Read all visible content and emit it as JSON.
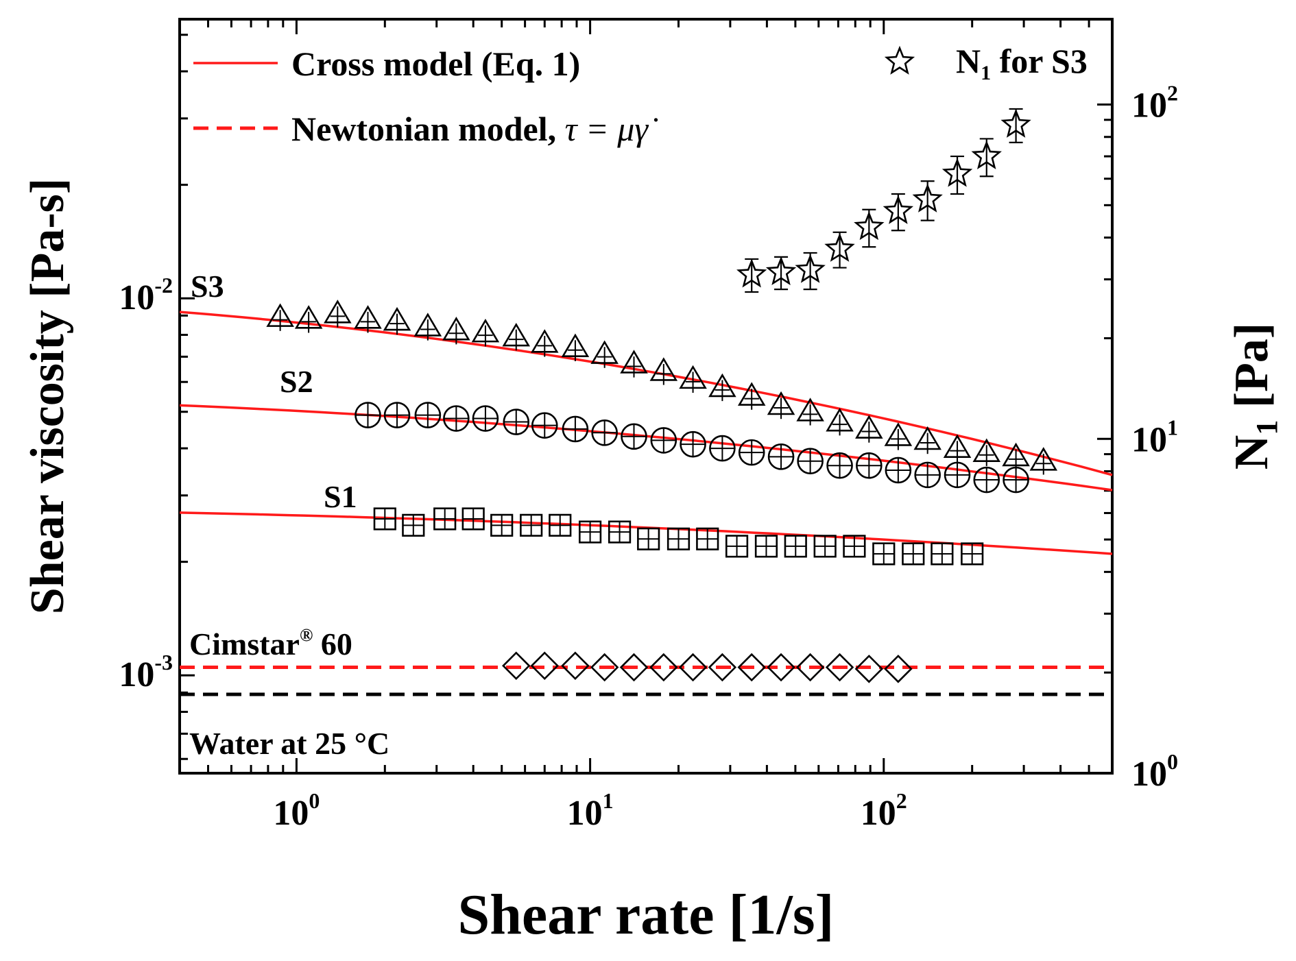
{
  "chart_data": {
    "type": "scatter",
    "xlabel": "Shear rate [1/s]",
    "ylabel": "Shear viscosity [Pa-s]",
    "y2label_main": "N",
    "y2label_sub": "1",
    "y2label_unit": " [Pa]",
    "xscale": "log",
    "yscale": "log",
    "y2scale": "log",
    "xlim": [
      0.4,
      600
    ],
    "ylim": [
      0.00055,
      0.055
    ],
    "y2lim": [
      1.0,
      180
    ],
    "x_ticks": [
      {
        "base": "10",
        "exp": "0",
        "value": 1
      },
      {
        "base": "10",
        "exp": "1",
        "value": 10
      },
      {
        "base": "10",
        "exp": "2",
        "value": 100
      }
    ],
    "y_ticks": [
      {
        "base": "10",
        "exp": "-3",
        "value": 0.001
      },
      {
        "base": "10",
        "exp": "-2",
        "value": 0.01
      }
    ],
    "y2_ticks": [
      {
        "base": "10",
        "exp": "0",
        "value": 1
      },
      {
        "base": "10",
        "exp": "1",
        "value": 10
      },
      {
        "base": "10",
        "exp": "2",
        "value": 100
      }
    ],
    "grid": false,
    "legend": {
      "placement": "top",
      "cross_label": "Cross model (Eq. 1)",
      "newton_label_text": "Newtonian model, ",
      "newton_label_eq": "τ = μγ̇",
      "n1_label_main": "N",
      "n1_label_sub": "1",
      "n1_label_rest": " for S3"
    },
    "annotations": {
      "s3": "S3",
      "s2": "S2",
      "s1": "S1",
      "cimstar_main": "Cimstar",
      "cimstar_sup": "®",
      "cimstar_rest": " 60",
      "water": "Water at 25 °C"
    },
    "colors": {
      "model": "#ff1a1a",
      "water": "#000000",
      "markers": "#000000"
    },
    "series": [
      {
        "name": "S3",
        "marker": "triangle",
        "x": [
          0.88,
          1.1,
          1.38,
          1.75,
          2.2,
          2.8,
          3.5,
          4.4,
          5.6,
          7.0,
          8.9,
          11.2,
          14.1,
          17.8,
          22.4,
          28.2,
          35.5,
          44.7,
          56.2,
          70.8,
          89.1,
          112,
          141,
          178,
          224,
          282,
          350
        ],
        "y": [
          0.0089,
          0.0088,
          0.0091,
          0.0088,
          0.0087,
          0.0084,
          0.0082,
          0.0081,
          0.0079,
          0.0076,
          0.0074,
          0.0071,
          0.0067,
          0.0064,
          0.0061,
          0.0058,
          0.0055,
          0.0052,
          0.005,
          0.0047,
          0.0045,
          0.0043,
          0.0042,
          0.004,
          0.0039,
          0.0038,
          0.0037
        ]
      },
      {
        "name": "S2",
        "marker": "circle-plus",
        "x": [
          1.75,
          2.2,
          2.8,
          3.5,
          4.4,
          5.6,
          7.0,
          8.9,
          11.2,
          14.1,
          17.8,
          22.4,
          28.2,
          35.5,
          44.7,
          56.2,
          70.8,
          89.1,
          112,
          141,
          178,
          224,
          282
        ],
        "y": [
          0.0049,
          0.0049,
          0.0049,
          0.0048,
          0.0048,
          0.0047,
          0.0046,
          0.0045,
          0.0044,
          0.0043,
          0.0042,
          0.0041,
          0.004,
          0.0039,
          0.0038,
          0.0037,
          0.0036,
          0.0036,
          0.0035,
          0.0034,
          0.0034,
          0.0033,
          0.0033
        ]
      },
      {
        "name": "S1",
        "marker": "square-plus",
        "x": [
          2.0,
          2.5,
          3.2,
          4.0,
          5.0,
          6.3,
          7.9,
          10,
          12.6,
          15.8,
          20,
          25.1,
          31.6,
          39.8,
          50.1,
          63.1,
          79.4,
          100,
          126,
          158,
          200
        ],
        "y": [
          0.0026,
          0.0025,
          0.0026,
          0.0026,
          0.0025,
          0.0025,
          0.0025,
          0.0024,
          0.0024,
          0.0023,
          0.0023,
          0.0023,
          0.0022,
          0.0022,
          0.0022,
          0.0022,
          0.0022,
          0.0021,
          0.0021,
          0.0021,
          0.0021
        ]
      },
      {
        "name": "Cimstar® 60",
        "marker": "diamond",
        "x": [
          5.6,
          7.0,
          8.9,
          11.2,
          14.1,
          17.8,
          22.4,
          28.2,
          35.5,
          44.7,
          56.2,
          70.8,
          89.1,
          112
        ],
        "y": [
          0.00106,
          0.00106,
          0.00106,
          0.00105,
          0.00105,
          0.00105,
          0.00105,
          0.00105,
          0.00105,
          0.00105,
          0.00105,
          0.00105,
          0.00104,
          0.00104
        ]
      }
    ],
    "n1_series": {
      "name": "N1 for S3",
      "marker": "star",
      "x": [
        35.5,
        44.7,
        56.2,
        70.8,
        89.1,
        112,
        141,
        178,
        224,
        282
      ],
      "y": [
        31,
        31.5,
        32,
        37,
        43,
        48,
        52,
        62,
        70,
        87
      ],
      "err": [
        3.5,
        3.5,
        4.0,
        4.5,
        5.5,
        6.0,
        7.0,
        8.0,
        9.0,
        10
      ]
    },
    "model_lines": [
      {
        "name": "Cross S3",
        "x": [
          0.4,
          600
        ],
        "y_start": 0.0092,
        "y_end": 0.0034
      },
      {
        "name": "Cross S2",
        "x": [
          0.4,
          600
        ],
        "y_start": 0.0052,
        "y_end": 0.0031
      },
      {
        "name": "Cross S1",
        "x": [
          0.4,
          600
        ],
        "y_start": 0.0027,
        "y_end": 0.0021
      }
    ],
    "newtonian_lines": [
      {
        "name": "Cimstar® 60",
        "y": 0.00105,
        "color": "model"
      },
      {
        "name": "Water at 25 °C",
        "y": 0.00089,
        "color": "water"
      }
    ]
  }
}
